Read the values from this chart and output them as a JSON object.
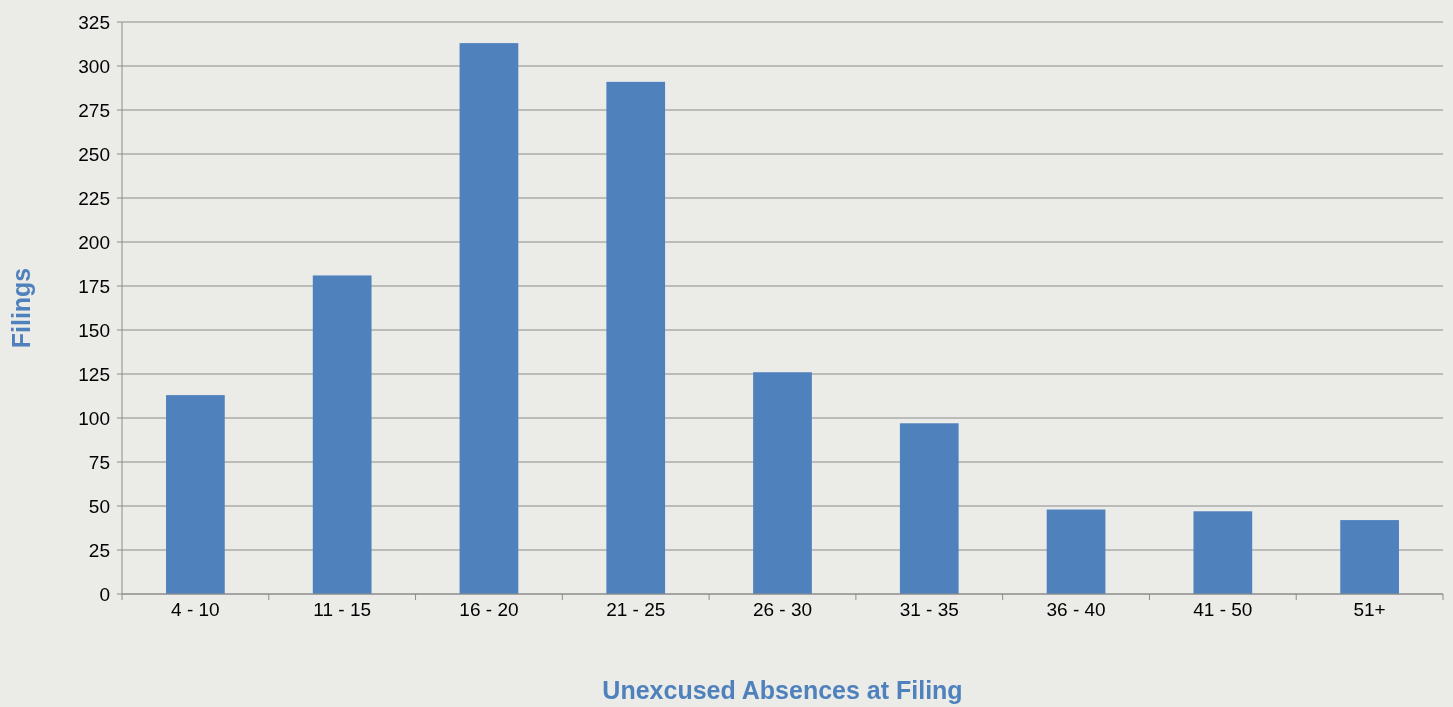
{
  "chart_data": {
    "type": "bar",
    "xlabel": "Unexcused Absences at Filing",
    "ylabel": "Filings",
    "categories": [
      "4 - 10",
      "11 - 15",
      "16 - 20",
      "21 - 25",
      "26 - 30",
      "31 - 35",
      "36 - 40",
      "41 - 50",
      "51+"
    ],
    "values": [
      113,
      181,
      313,
      291,
      126,
      97,
      48,
      47,
      42
    ],
    "color": "#4f81bd",
    "ylim": [
      0,
      325
    ],
    "yticks": [
      0,
      25,
      50,
      75,
      100,
      125,
      150,
      175,
      200,
      225,
      250,
      275,
      300,
      325
    ],
    "grid": "y"
  }
}
